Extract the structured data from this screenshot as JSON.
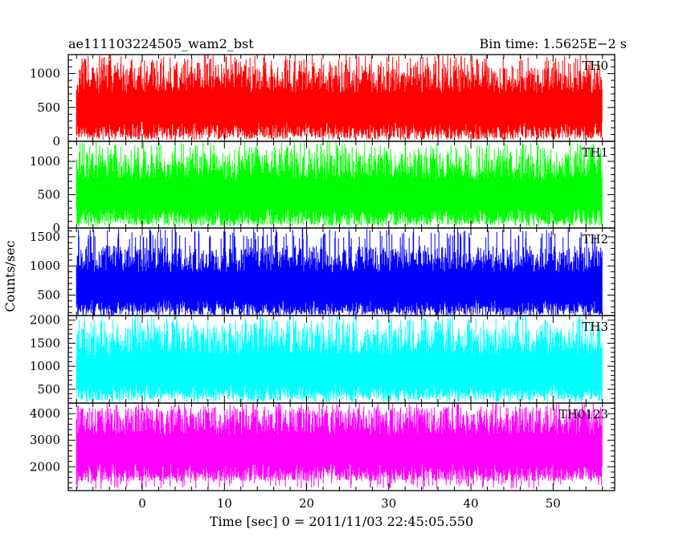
{
  "header": {
    "title": "ae111103224505_wam2_bst",
    "bin_time": "Bin time: 1.5625E−2 s"
  },
  "chart_data": {
    "type": "line",
    "xlabel": "Time [sec] 0 = 2011/11/03 22:45:05.550",
    "ylabel": "Counts/sec",
    "xlim": [
      -9,
      57.5
    ],
    "x_range": [
      -8,
      56
    ],
    "x_ticks": [
      0,
      10,
      20,
      30,
      40,
      50
    ],
    "panels": [
      {
        "name": "TH0",
        "color": "#ff0000",
        "ylim": [
          0,
          1280
        ],
        "yticks": [
          0,
          500,
          1000
        ],
        "mean": 520,
        "spread": 190,
        "low_floor": 20,
        "high": 1280,
        "low_clip": 0,
        "high_clip": 1280
      },
      {
        "name": "TH1",
        "color": "#00ff00",
        "ylim": [
          0,
          1300
        ],
        "yticks": [
          0,
          500,
          1000
        ],
        "mean": 530,
        "spread": 190,
        "low_floor": 20,
        "high": 1300,
        "low_clip": 0,
        "high_clip": 1300
      },
      {
        "name": "TH2",
        "color": "#0000ff",
        "ylim": [
          150,
          1650
        ],
        "yticks": [
          500,
          1000,
          1500
        ],
        "mean": 680,
        "spread": 210,
        "low_floor": 170,
        "high": 1650,
        "low_clip": 150,
        "high_clip": 1650
      },
      {
        "name": "TH3",
        "color": "#00ffff",
        "ylim": [
          200,
          2100
        ],
        "yticks": [
          500,
          1000,
          1500,
          2000
        ],
        "mean": 950,
        "spread": 280,
        "low_floor": 320,
        "high": 2100,
        "low_clip": 200,
        "high_clip": 2100
      },
      {
        "name": "TH0123",
        "color": "#ff00ff",
        "ylim": [
          1100,
          4400
        ],
        "yticks": [
          2000,
          3000,
          4000
        ],
        "mean": 2700,
        "spread": 480,
        "low_floor": 1150,
        "high": 4400,
        "low_clip": 1100,
        "high_clip": 4400
      }
    ]
  }
}
